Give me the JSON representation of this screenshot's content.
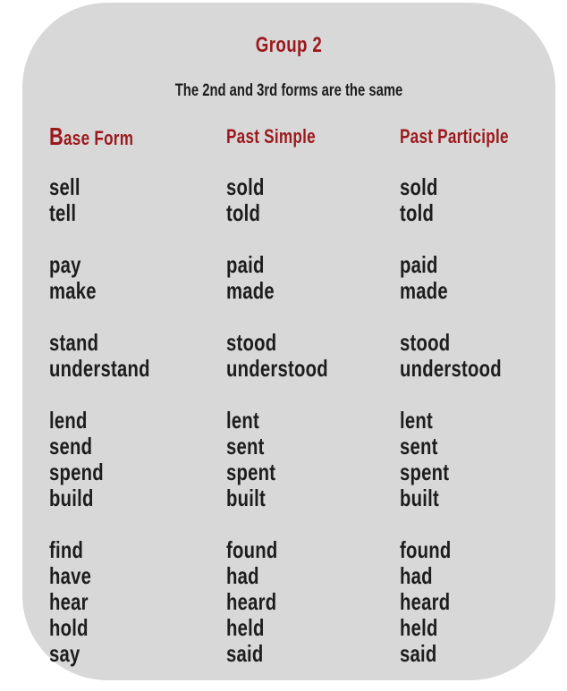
{
  "card": {
    "title": "Group 2",
    "subtitle": "The 2nd and 3rd forms are the same",
    "columns": [
      "Base Form",
      "Past Simple",
      "Past Participle"
    ],
    "groups": [
      [
        [
          "sell",
          "sold",
          "sold"
        ],
        [
          "tell",
          "told",
          "told"
        ]
      ],
      [
        [
          "pay",
          "paid",
          "paid"
        ],
        [
          "make",
          "made",
          "made"
        ]
      ],
      [
        [
          "stand",
          "stood",
          "stood"
        ],
        [
          "understand",
          "understood",
          "understood"
        ]
      ],
      [
        [
          "lend",
          "lent",
          "lent"
        ],
        [
          "send",
          "sent",
          "sent"
        ],
        [
          "spend",
          "spent",
          "spent"
        ],
        [
          "build",
          "built",
          "built"
        ]
      ],
      [
        [
          "find",
          "found",
          "found"
        ],
        [
          "have",
          "had",
          "had"
        ],
        [
          "hear",
          "heard",
          "heard"
        ],
        [
          "hold",
          "held",
          "held"
        ],
        [
          "say",
          "said",
          "said"
        ]
      ]
    ],
    "colors": {
      "accent": "#9b191c",
      "text": "#1d1d1d",
      "card_background": "#d8d8d8",
      "page_background": "#ffffff"
    }
  }
}
